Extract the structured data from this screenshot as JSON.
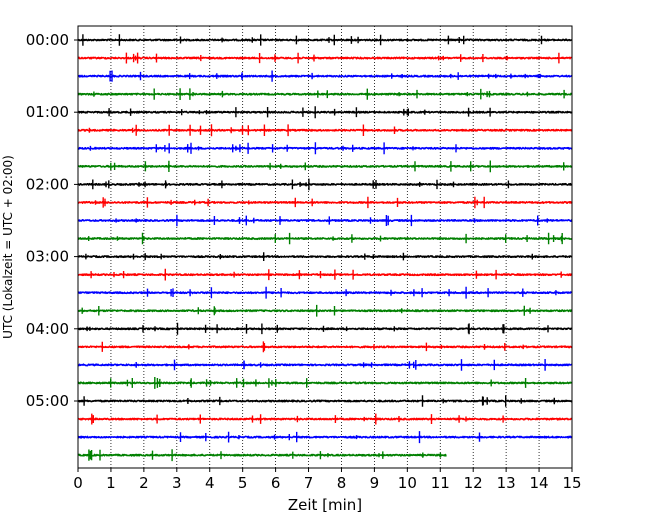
{
  "chart_data": {
    "type": "line",
    "chart_kind": "helicorder / seismogram drum plot",
    "title": "",
    "xlabel": "Zeit  [min]",
    "ylabel": "UTC (Lokalzeit = UTC + 02:00)",
    "xlim": [
      0,
      15
    ],
    "x_ticks": [
      "0",
      "1",
      "2",
      "3",
      "4",
      "5",
      "6",
      "7",
      "8",
      "9",
      "10",
      "11",
      "12",
      "13",
      "14",
      "15"
    ],
    "y_tick_labels": [
      "00:00",
      "01:00",
      "02:00",
      "03:00",
      "04:00",
      "05:00"
    ],
    "vertical_grid": "dotted, every 1 min",
    "trace_minutes": 15,
    "trace_color_cycle": [
      "#000000",
      "#ff0000",
      "#0000ff",
      "#008000"
    ],
    "traces": [
      {
        "start_utc": "00:00",
        "color": "#000000",
        "end_min": 15
      },
      {
        "start_utc": "00:15",
        "color": "#ff0000",
        "end_min": 15
      },
      {
        "start_utc": "00:30",
        "color": "#0000ff",
        "end_min": 15
      },
      {
        "start_utc": "00:45",
        "color": "#008000",
        "end_min": 15
      },
      {
        "start_utc": "01:00",
        "color": "#000000",
        "end_min": 15
      },
      {
        "start_utc": "01:15",
        "color": "#ff0000",
        "end_min": 15
      },
      {
        "start_utc": "01:30",
        "color": "#0000ff",
        "end_min": 15
      },
      {
        "start_utc": "01:45",
        "color": "#008000",
        "end_min": 15
      },
      {
        "start_utc": "02:00",
        "color": "#000000",
        "end_min": 15
      },
      {
        "start_utc": "02:15",
        "color": "#ff0000",
        "end_min": 15
      },
      {
        "start_utc": "02:30",
        "color": "#0000ff",
        "end_min": 15
      },
      {
        "start_utc": "02:45",
        "color": "#008000",
        "end_min": 15
      },
      {
        "start_utc": "03:00",
        "color": "#000000",
        "end_min": 15
      },
      {
        "start_utc": "03:15",
        "color": "#ff0000",
        "end_min": 15
      },
      {
        "start_utc": "03:30",
        "color": "#0000ff",
        "end_min": 15
      },
      {
        "start_utc": "03:45",
        "color": "#008000",
        "end_min": 15
      },
      {
        "start_utc": "04:00",
        "color": "#000000",
        "end_min": 15
      },
      {
        "start_utc": "04:15",
        "color": "#ff0000",
        "end_min": 15
      },
      {
        "start_utc": "04:30",
        "color": "#0000ff",
        "end_min": 15
      },
      {
        "start_utc": "04:45",
        "color": "#008000",
        "end_min": 15
      },
      {
        "start_utc": "05:00",
        "color": "#000000",
        "end_min": 15
      },
      {
        "start_utc": "05:15",
        "color": "#ff0000",
        "end_min": 15
      },
      {
        "start_utc": "05:30",
        "color": "#0000ff",
        "end_min": 15
      },
      {
        "start_utc": "05:45",
        "color": "#008000",
        "end_min": 11.2
      }
    ]
  }
}
